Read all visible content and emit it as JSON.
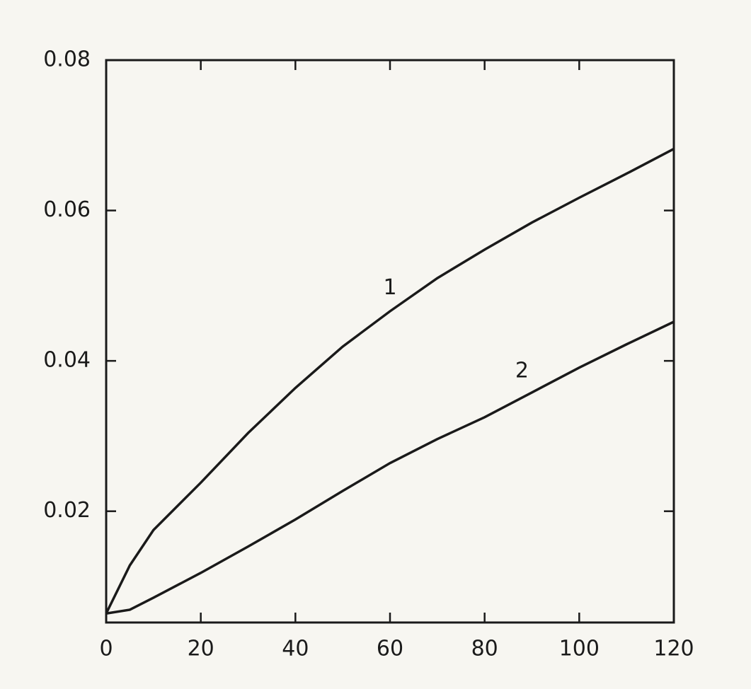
{
  "chart_data": {
    "type": "line",
    "x": [
      0,
      5,
      10,
      20,
      30,
      40,
      50,
      60,
      70,
      80,
      90,
      100,
      110,
      120
    ],
    "series": [
      {
        "name": "1",
        "color": "#1a1a1a",
        "values": [
          0.0064,
          0.0128,
          0.0175,
          0.0238,
          0.0304,
          0.0364,
          0.0419,
          0.0466,
          0.051,
          0.0548,
          0.0584,
          0.0617,
          0.0649,
          0.0682
        ]
      },
      {
        "name": "2",
        "color": "#1a1a1a",
        "values": [
          0.0064,
          0.0069,
          0.0085,
          0.0118,
          0.0153,
          0.0189,
          0.0227,
          0.0264,
          0.0296,
          0.0325,
          0.0358,
          0.0391,
          0.0422,
          0.0452
        ]
      }
    ],
    "xlim": [
      0,
      120
    ],
    "xticks": [
      0,
      20,
      40,
      60,
      80,
      100,
      120
    ],
    "ylim": [
      0.0052,
      0.08
    ],
    "yticks": [
      0.02,
      0.04,
      0.06,
      0.08
    ]
  }
}
